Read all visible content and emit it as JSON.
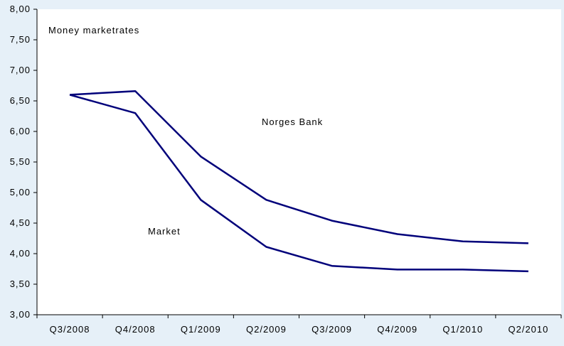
{
  "chart_data": {
    "type": "line",
    "title": "Money marketrates",
    "xlabel": "",
    "ylabel": "",
    "categories": [
      "Q3/2008",
      "Q4/2008",
      "Q1/2009",
      "Q2/2009",
      "Q3/2009",
      "Q4/2009",
      "Q1/2010",
      "Q2/2010"
    ],
    "series": [
      {
        "name": "Norges Bank",
        "values": [
          6.6,
          6.66,
          5.59,
          4.88,
          4.54,
          4.32,
          4.2,
          4.17
        ]
      },
      {
        "name": "Market",
        "values": [
          6.6,
          6.3,
          4.88,
          4.11,
          3.8,
          3.74,
          3.74,
          3.71
        ]
      }
    ],
    "yticks": [
      "3,00",
      "3,50",
      "4,00",
      "4,50",
      "5,00",
      "5,50",
      "6,00",
      "6,50",
      "7,00",
      "7,50",
      "8,00"
    ],
    "ylim": [
      3.0,
      8.0
    ],
    "grid": false,
    "legend": "inline labels"
  },
  "colors": {
    "background": "#e6f0f8",
    "plot_area": "#ffffff",
    "line": "#00007a",
    "axis": "#000000"
  }
}
